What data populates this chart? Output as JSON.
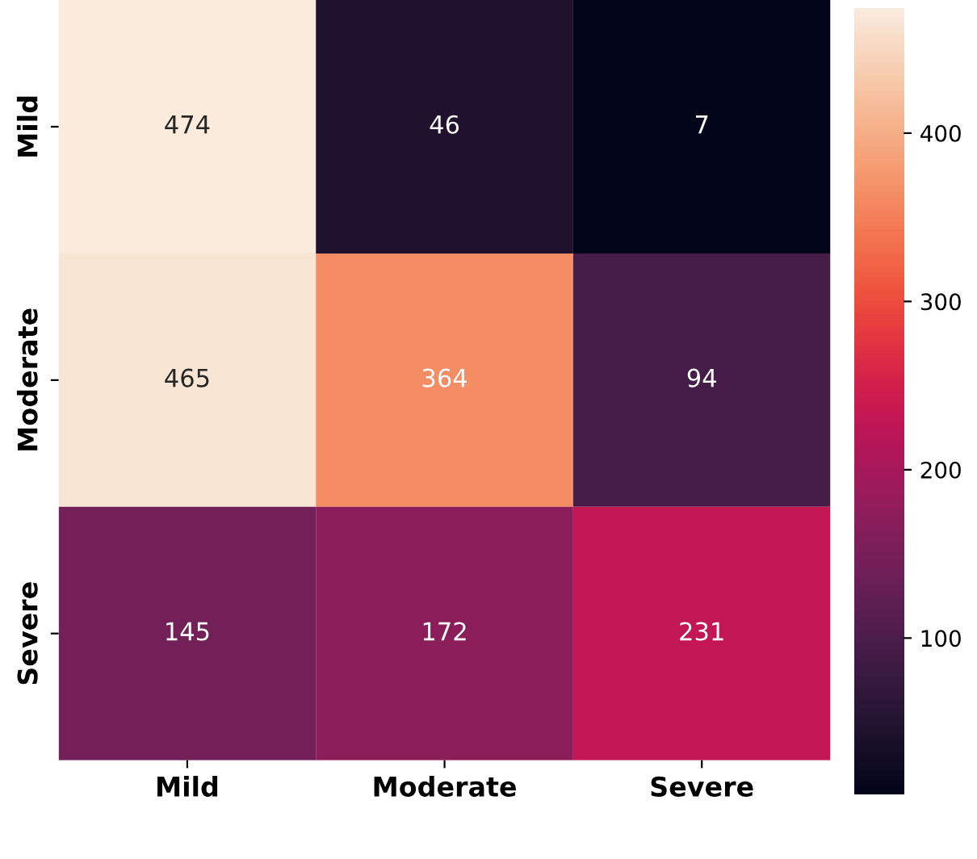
{
  "chart_data": {
    "type": "heatmap",
    "categories": [
      "Mild",
      "Moderate",
      "Severe"
    ],
    "y_categories": [
      "Mild",
      "Moderate",
      "Severe"
    ],
    "cells": [
      [
        474,
        46,
        7
      ],
      [
        465,
        364,
        94
      ],
      [
        145,
        172,
        231
      ]
    ],
    "clim": [
      7,
      474
    ],
    "cticks": [
      100,
      200,
      300,
      400
    ],
    "data_labels": true
  }
}
